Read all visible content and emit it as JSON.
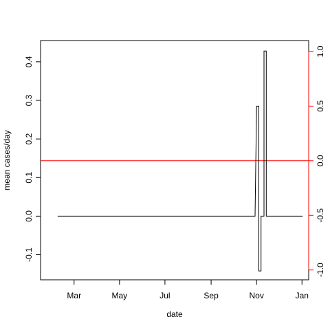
{
  "chart_data": {
    "type": "line",
    "title": "",
    "xlabel": "date",
    "ylabel": "mean cases/day",
    "x_ticks": [
      "Mar",
      "May",
      "Jul",
      "Sep",
      "Nov",
      "Jan"
    ],
    "x_tick_dates": [
      "2020-03-01",
      "2020-05-01",
      "2020-07-01",
      "2020-09-01",
      "2020-11-01",
      "2021-01-01"
    ],
    "xlim": [
      "2020-01-16",
      "2021-01-10"
    ],
    "ylim": [
      -0.165,
      0.455
    ],
    "y_ticks": [
      -0.1,
      0.0,
      0.1,
      0.2,
      0.3,
      0.4
    ],
    "y_tick_labels": [
      "-0.1",
      "0.0",
      "0.1",
      "0.2",
      "0.3",
      "0.4"
    ],
    "y2_ticks": [
      -1.0,
      -0.5,
      0.0,
      0.5,
      1.0
    ],
    "y2_tick_labels": [
      "-1.0",
      "-0.5",
      "0.0",
      "0.5",
      "1.0"
    ],
    "y2lim": [
      -1.09,
      1.1
    ],
    "y2_color": "#ff0000",
    "reference_line": {
      "axis": "y2",
      "value": 0.0,
      "color": "#ff0000"
    },
    "grid": false,
    "series": [
      {
        "color": "#000000",
        "x": [
          "2020-02-08",
          "2020-10-30",
          "2020-11-01",
          "2020-11-01",
          "2020-11-04",
          "2020-11-04",
          "2020-11-07",
          "2020-11-07",
          "2020-11-11",
          "2020-11-11",
          "2020-11-14",
          "2020-11-14",
          "2020-11-17",
          "2020-11-17",
          "2021-01-02"
        ],
        "y": [
          0,
          0,
          0.285,
          0.285,
          0.285,
          -0.142,
          -0.142,
          0,
          0,
          0.428,
          0.428,
          0,
          0,
          0,
          0
        ]
      }
    ]
  }
}
